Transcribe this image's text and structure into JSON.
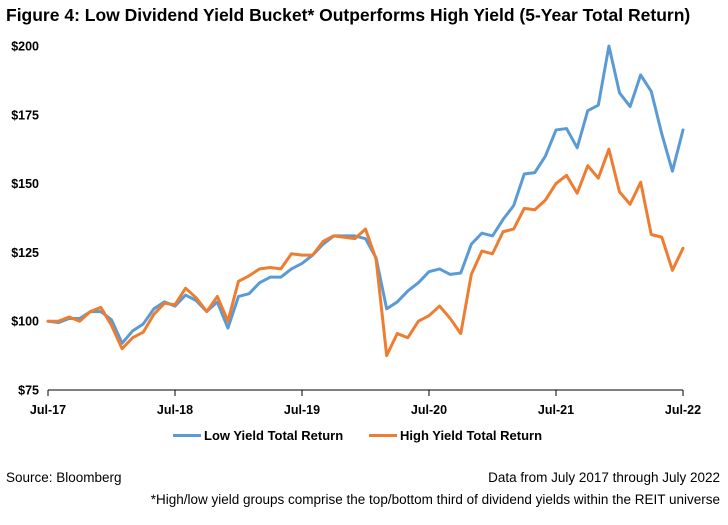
{
  "title": "Figure 4: Low Dividend Yield Bucket* Outperforms High Yield (5-Year Total Return)",
  "source": "Source: Bloomberg",
  "data_range": "Data from July 2017 through July 2022",
  "footnote": "*High/low yield groups comprise the top/bottom third of dividend yields within the REIT universe",
  "chart_data": {
    "type": "line",
    "xlabel": "",
    "ylabel": "",
    "ylim": [
      75,
      200
    ],
    "yticks": [
      "$75",
      "$100",
      "$125",
      "$150",
      "$175",
      "$200"
    ],
    "ytick_values": [
      75,
      100,
      125,
      150,
      175,
      200
    ],
    "xticks": [
      "Jul-17",
      "Jul-18",
      "Jul-19",
      "Jul-20",
      "Jul-21",
      "Jul-22"
    ],
    "x": [
      "2017-07",
      "2017-08",
      "2017-09",
      "2017-10",
      "2017-11",
      "2017-12",
      "2018-01",
      "2018-02",
      "2018-03",
      "2018-04",
      "2018-05",
      "2018-06",
      "2018-07",
      "2018-08",
      "2018-09",
      "2018-10",
      "2018-11",
      "2018-12",
      "2019-01",
      "2019-02",
      "2019-03",
      "2019-04",
      "2019-05",
      "2019-06",
      "2019-07",
      "2019-08",
      "2019-09",
      "2019-10",
      "2019-11",
      "2019-12",
      "2020-01",
      "2020-02",
      "2020-03",
      "2020-04",
      "2020-05",
      "2020-06",
      "2020-07",
      "2020-08",
      "2020-09",
      "2020-10",
      "2020-11",
      "2020-12",
      "2021-01",
      "2021-02",
      "2021-03",
      "2021-04",
      "2021-05",
      "2021-06",
      "2021-07",
      "2021-08",
      "2021-09",
      "2021-10",
      "2021-11",
      "2021-12",
      "2022-01",
      "2022-02",
      "2022-03",
      "2022-04",
      "2022-05",
      "2022-06",
      "2022-07"
    ],
    "grid": false,
    "legend_position": "bottom",
    "series": [
      {
        "name": "Low Yield Total Return",
        "color": "#5b9bd5",
        "values": [
          100,
          99.5,
          101,
          101,
          103.5,
          103.5,
          100.5,
          92,
          96.5,
          99,
          104.5,
          107,
          105.5,
          109.5,
          107.5,
          103.5,
          107,
          97.5,
          109,
          110,
          114,
          116,
          116,
          119,
          121,
          124,
          128,
          131,
          131,
          131,
          130,
          123,
          104.5,
          107,
          111,
          114,
          118,
          119,
          117,
          117.5,
          128,
          132,
          131,
          137,
          142,
          153.5,
          154,
          160,
          169.5,
          170,
          163,
          176.5,
          178.5,
          200,
          183,
          178,
          189.5,
          183.5,
          168,
          154.5,
          169.5
        ]
      },
      {
        "name": "High Yield Total Return",
        "color": "#ed7d31",
        "values": [
          100,
          100,
          101.5,
          100,
          103.5,
          105,
          98.5,
          90,
          94,
          96,
          102.5,
          106.5,
          106,
          112,
          108.5,
          103.5,
          109,
          100,
          114.5,
          116.5,
          119,
          119.5,
          119,
          124.5,
          124,
          124,
          129,
          131,
          130.5,
          130,
          133.5,
          122.5,
          87.5,
          95.5,
          94,
          100,
          102,
          105.5,
          101,
          95.5,
          117,
          125.5,
          124.5,
          132.5,
          133.5,
          141,
          140.5,
          144,
          150,
          153,
          146.5,
          156.5,
          152,
          162.5,
          147,
          142.5,
          150.5,
          131.5,
          130.5,
          118.5,
          126.5
        ]
      }
    ]
  }
}
